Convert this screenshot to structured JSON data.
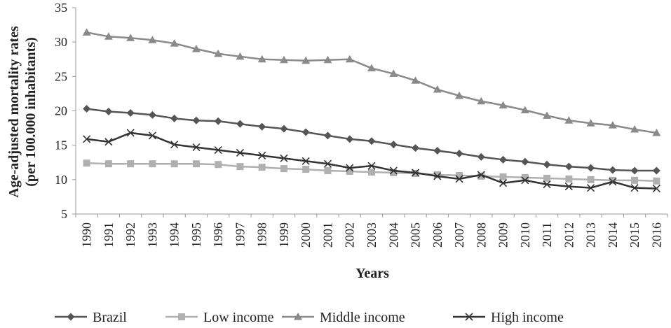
{
  "chart_data": {
    "type": "line",
    "xlabel": "Years",
    "ylabel": "Age-adjusted mortality rates",
    "ylabel_sub": "(per 100.000 inhabitants)",
    "ylim": [
      5,
      35
    ],
    "yticks": [
      5,
      10,
      15,
      20,
      25,
      30,
      35
    ],
    "categories": [
      "1990",
      "1991",
      "1992",
      "1993",
      "1994",
      "1995",
      "1996",
      "1997",
      "1998",
      "1999",
      "2000",
      "2001",
      "2002",
      "2003",
      "2004",
      "2005",
      "2006",
      "2007",
      "2008",
      "2009",
      "2010",
      "2011",
      "2012",
      "2013",
      "2014",
      "2015",
      "2016"
    ],
    "grid": false,
    "legend_position": "bottom",
    "series": [
      {
        "name": "Brazil",
        "marker": "diamond",
        "color": "#555555",
        "values": [
          20.3,
          19.9,
          19.7,
          19.4,
          18.9,
          18.6,
          18.5,
          18.1,
          17.7,
          17.4,
          16.9,
          16.4,
          15.9,
          15.6,
          15.1,
          14.6,
          14.2,
          13.8,
          13.3,
          12.9,
          12.6,
          12.2,
          11.9,
          11.7,
          11.4,
          11.3,
          11.3
        ]
      },
      {
        "name": "Low income",
        "marker": "square",
        "color": "#b0b0b0",
        "values": [
          12.4,
          12.3,
          12.3,
          12.3,
          12.3,
          12.3,
          12.2,
          11.9,
          11.8,
          11.6,
          11.5,
          11.3,
          11.2,
          11.1,
          11.0,
          10.9,
          10.7,
          10.6,
          10.5,
          10.4,
          10.3,
          10.2,
          10.1,
          10.0,
          9.9,
          9.9,
          9.8
        ]
      },
      {
        "name": "Middle income",
        "marker": "triangle",
        "color": "#8a8a8a",
        "values": [
          31.4,
          30.8,
          30.6,
          30.3,
          29.8,
          29.0,
          28.3,
          27.9,
          27.5,
          27.4,
          27.3,
          27.4,
          27.5,
          26.2,
          25.4,
          24.4,
          23.1,
          22.2,
          21.4,
          20.8,
          20.1,
          19.3,
          18.6,
          18.2,
          17.9,
          17.3,
          16.8
        ]
      },
      {
        "name": "High income",
        "marker": "x",
        "color": "#333333",
        "values": [
          15.9,
          15.5,
          16.8,
          16.4,
          15.1,
          14.7,
          14.3,
          13.9,
          13.5,
          13.1,
          12.7,
          12.3,
          11.7,
          12.0,
          11.3,
          11.0,
          10.5,
          10.1,
          10.7,
          9.5,
          9.9,
          9.3,
          9.0,
          8.8,
          9.7,
          8.8,
          8.7
        ]
      }
    ]
  }
}
